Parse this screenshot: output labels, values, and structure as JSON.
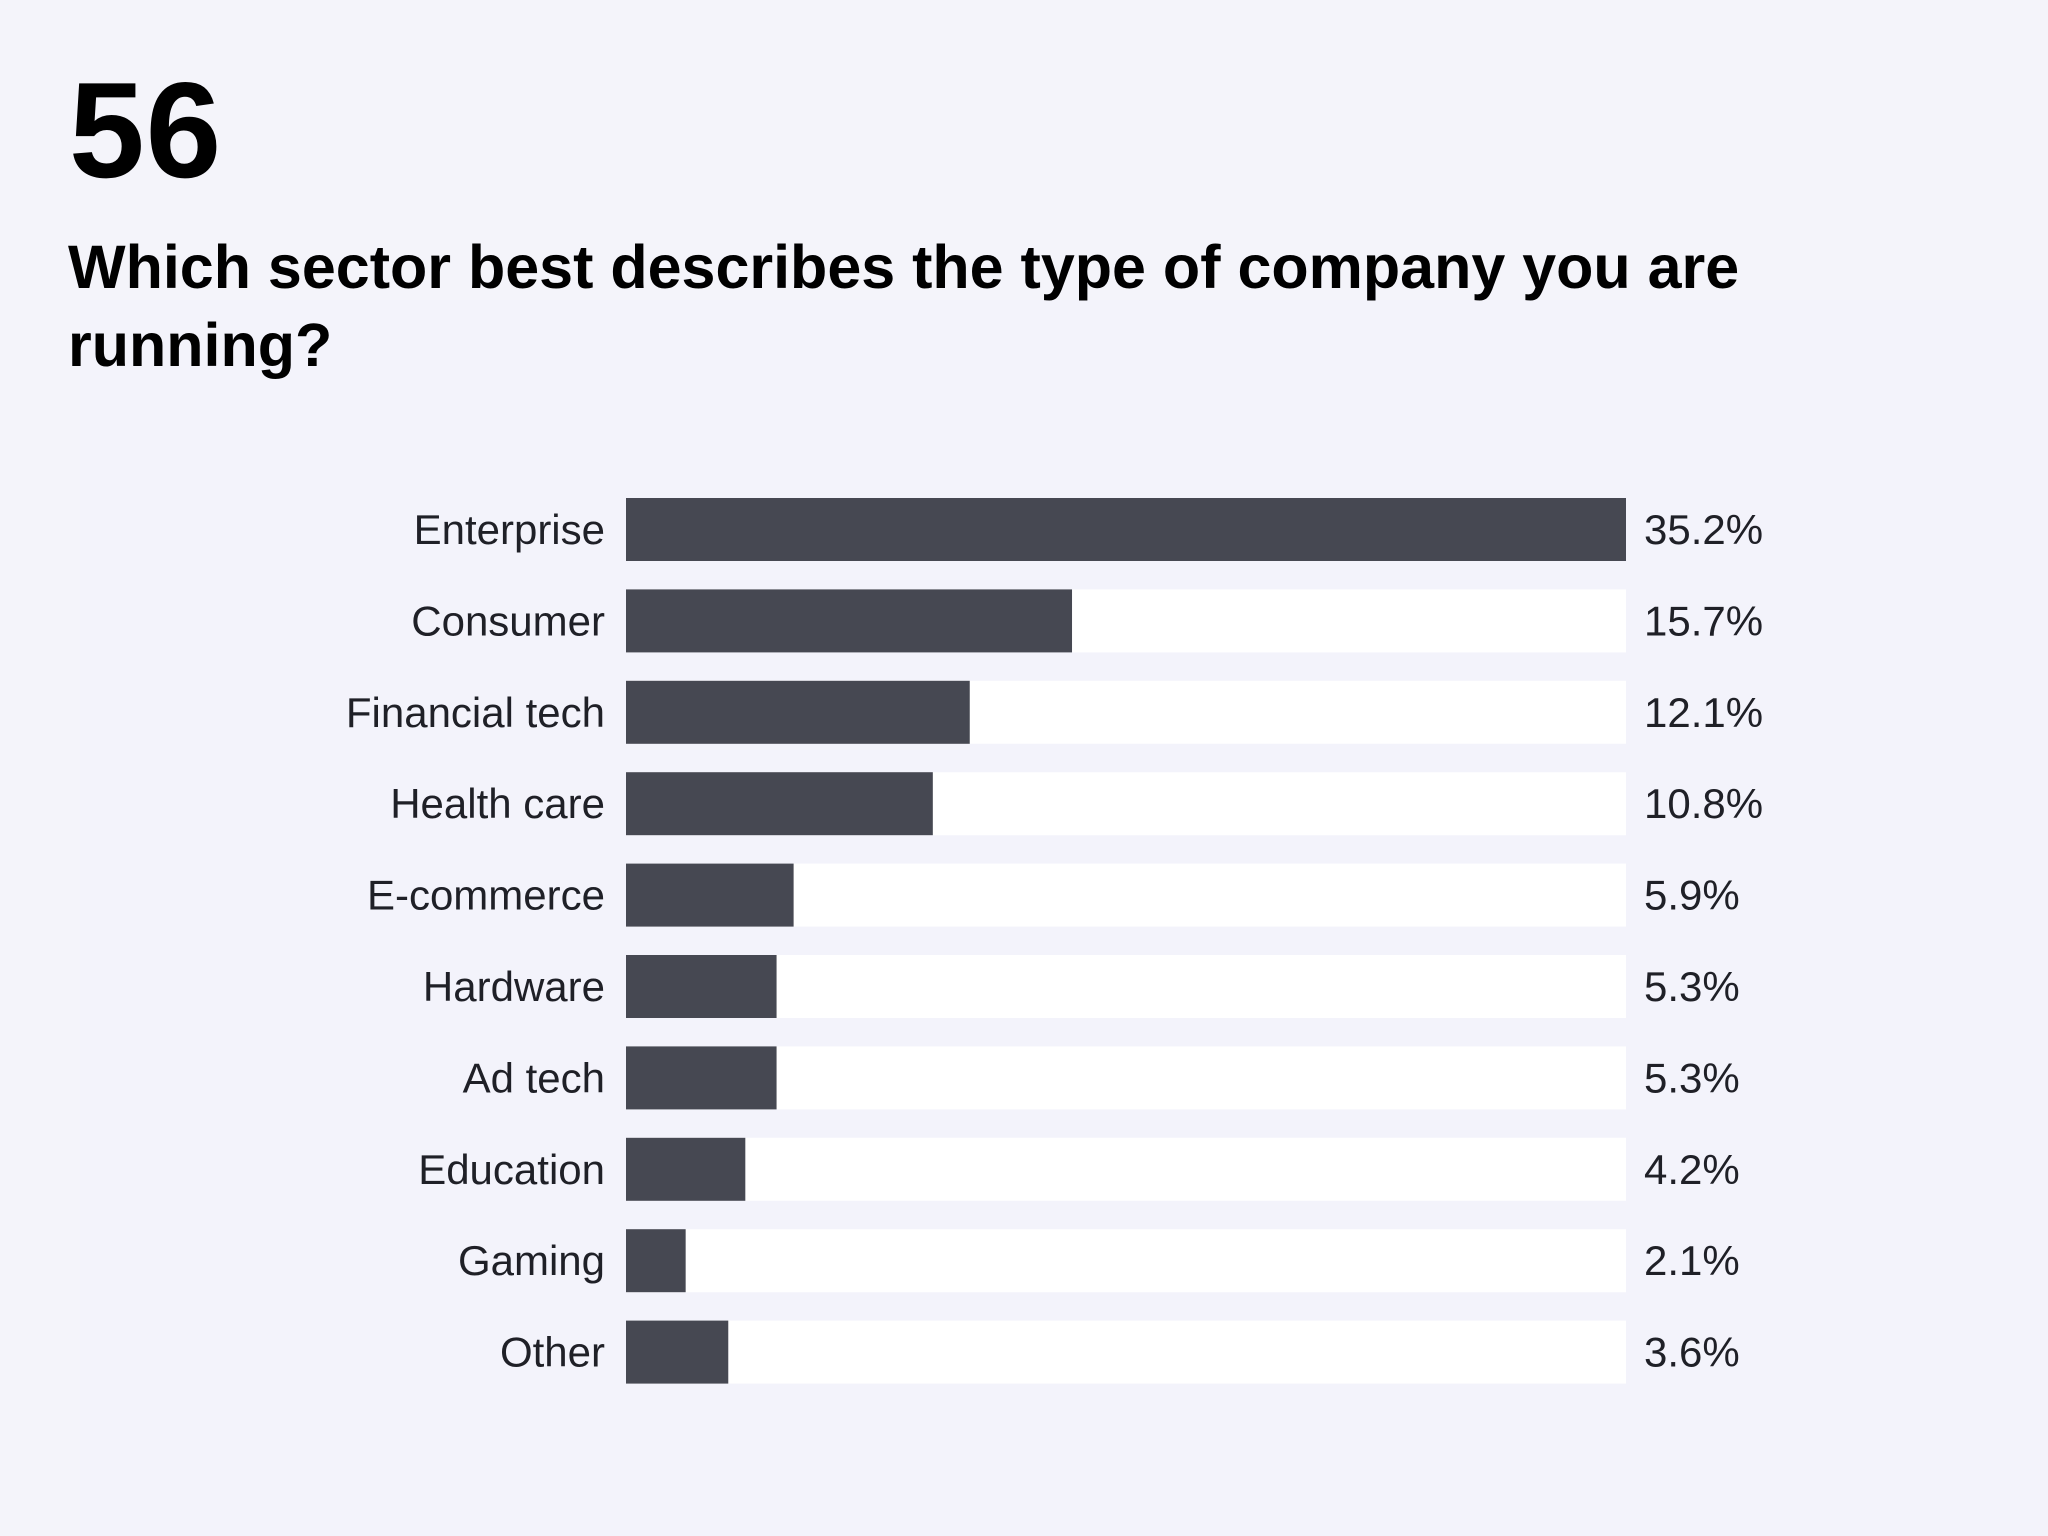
{
  "header": {
    "number": "56",
    "question": "Which sector best describes the type of company you are running?"
  },
  "colors": {
    "background": "#f4f4fa",
    "bar_fill": "#464852",
    "bar_track": "#ffffff",
    "text": "#1f2027"
  },
  "chart_data": {
    "type": "bar",
    "orientation": "horizontal",
    "title": "Which sector best describes the type of company you are running?",
    "categories": [
      "Enterprise",
      "Consumer",
      "Financial tech",
      "Health care",
      "E-commerce",
      "Hardware",
      "Ad tech",
      "Education",
      "Gaming",
      "Other"
    ],
    "values": [
      35.2,
      15.7,
      12.1,
      10.8,
      5.9,
      5.3,
      5.3,
      4.2,
      2.1,
      3.6
    ],
    "value_labels": [
      "35.2%",
      "15.7%",
      "12.1%",
      "10.8%",
      "5.9%",
      "5.3%",
      "5.3%",
      "4.2%",
      "2.1%",
      "3.6%"
    ],
    "xlim": [
      0,
      35.2
    ],
    "grid": false,
    "legend": "none"
  }
}
